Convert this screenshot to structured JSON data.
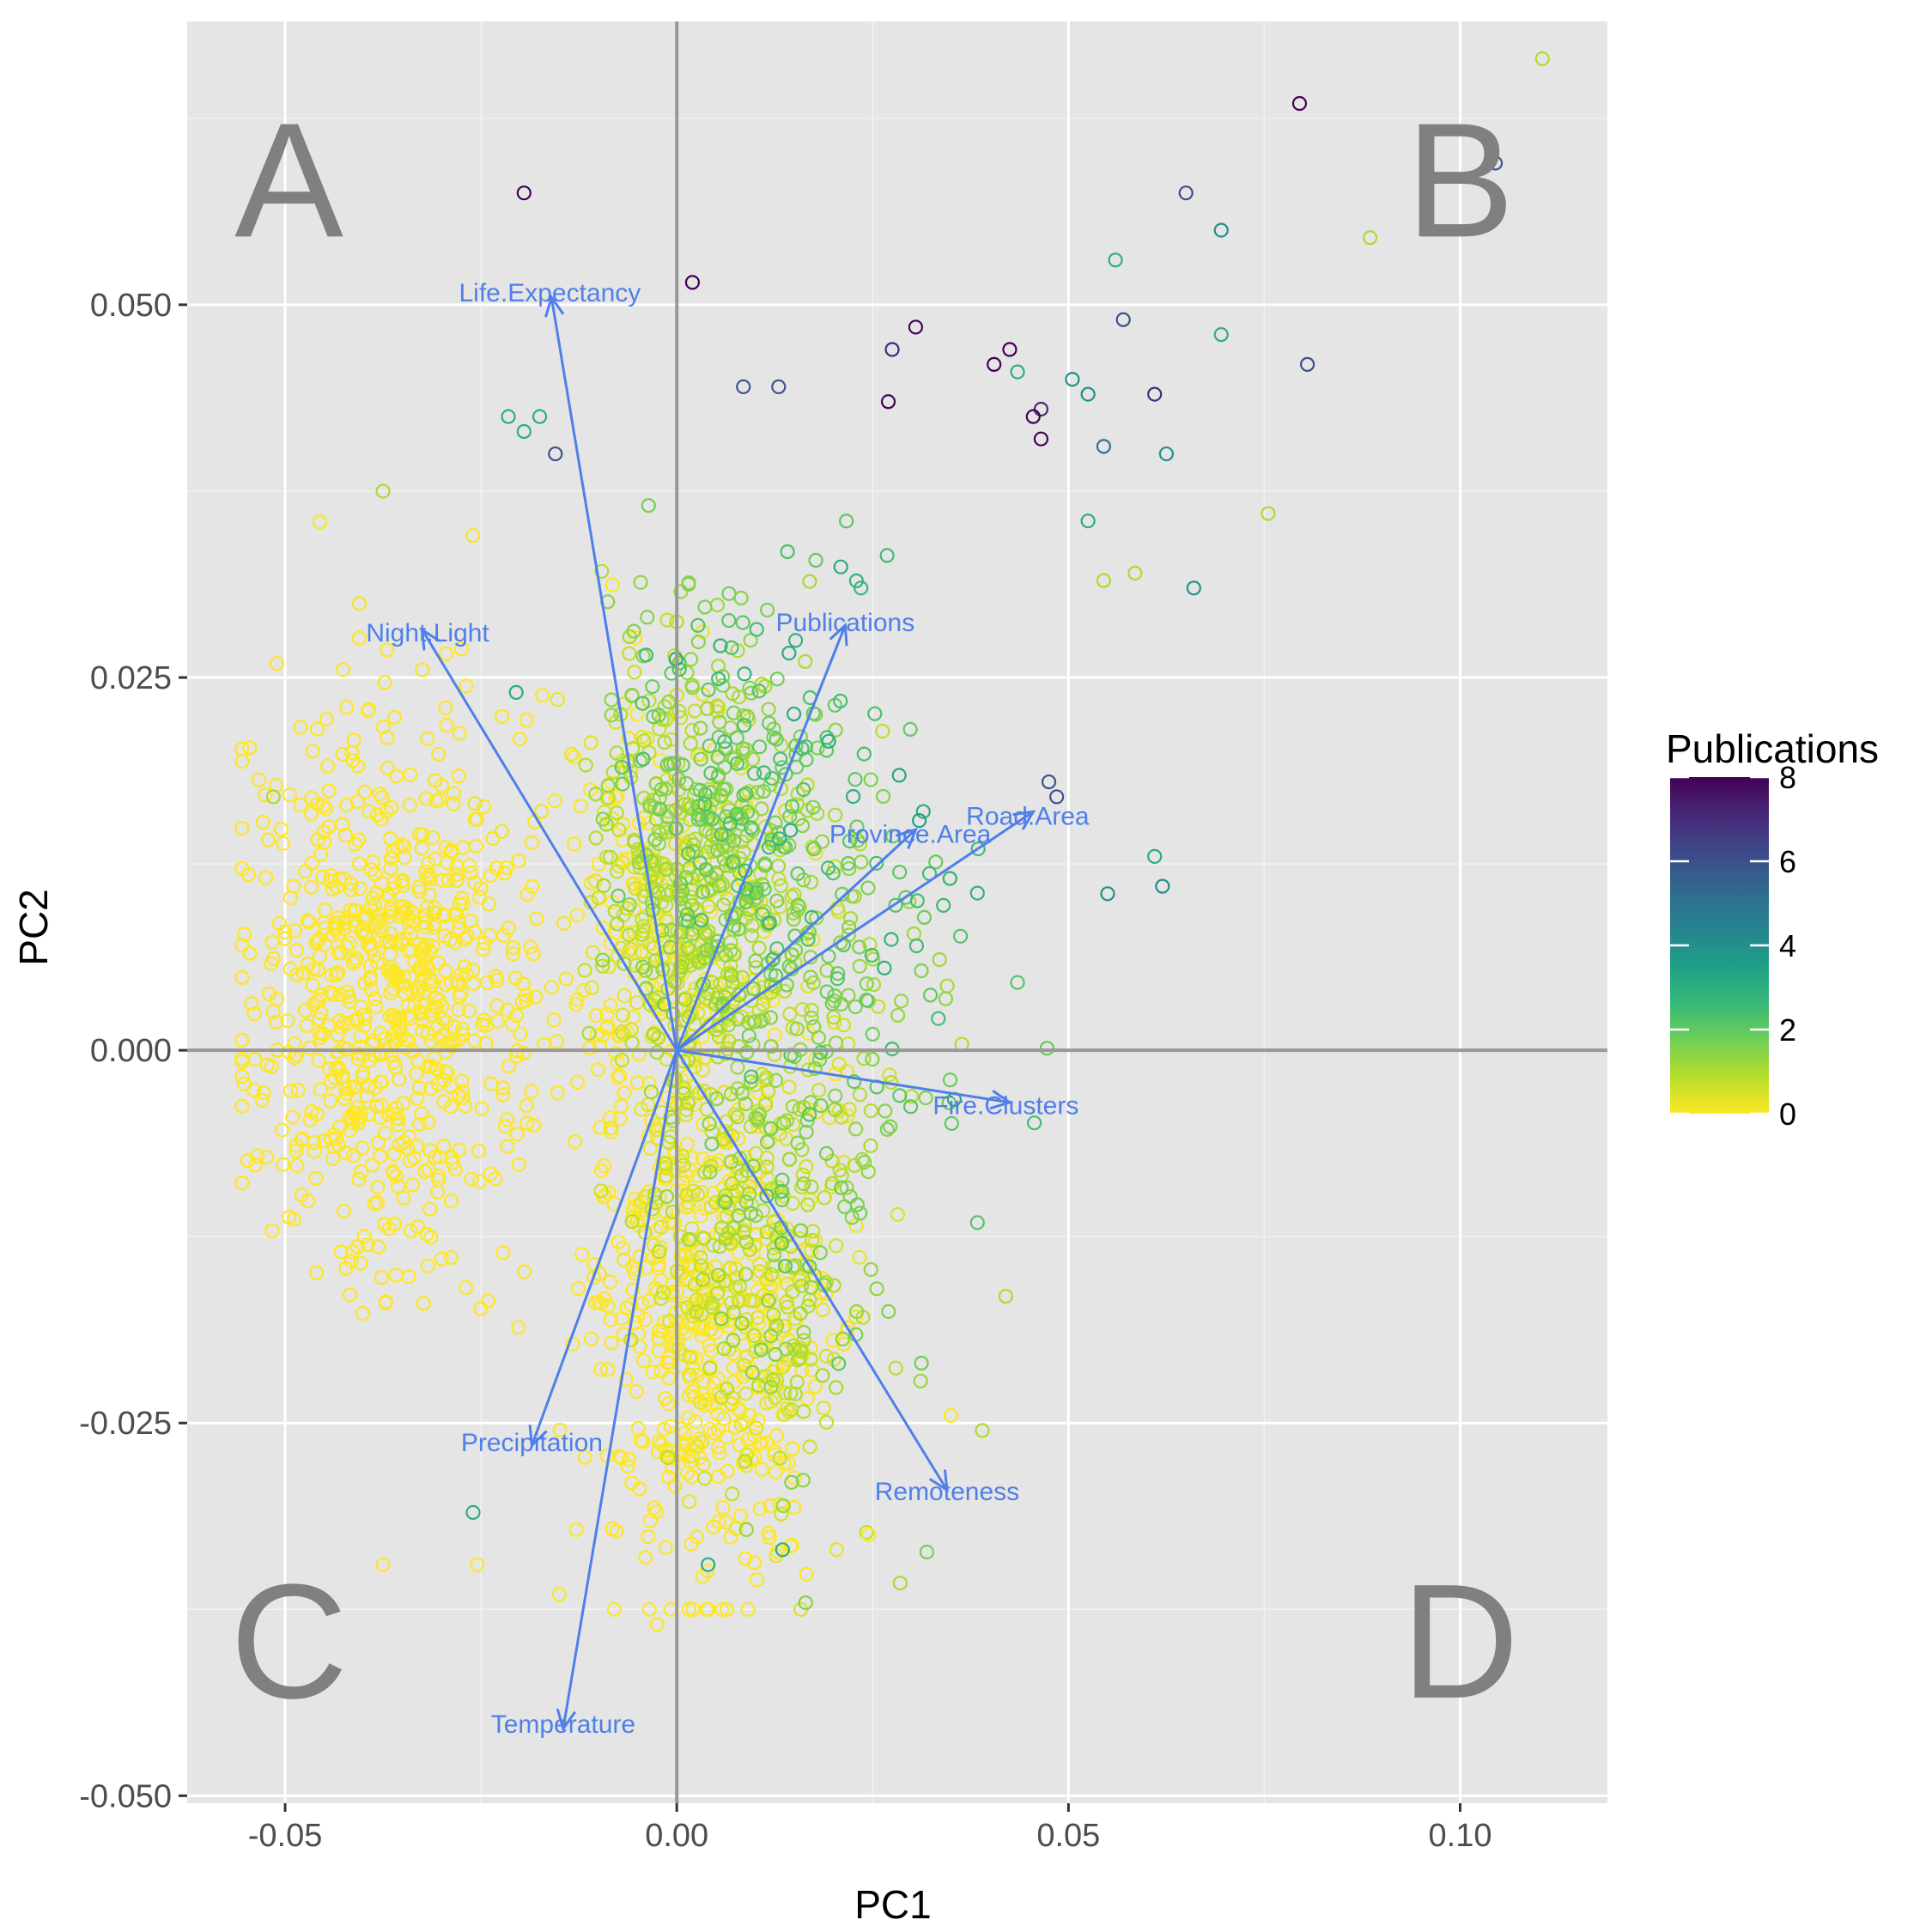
{
  "colors": {
    "panel": "#e5e5e5",
    "grid_major": "#ffffff",
    "grid_minor": "#f2f2f2",
    "ref_lines": "#999999",
    "arrows": "#4f7fe8",
    "quadrant_text": "#808080",
    "viridis": [
      "#fde725",
      "#b5de2b",
      "#6ece58",
      "#35b779",
      "#1f9e89",
      "#26828e",
      "#31688e",
      "#3e4989",
      "#482878",
      "#440154"
    ]
  },
  "chart_data": {
    "type": "scatter",
    "subtype": "pca-biplot",
    "xlabel": "PC1",
    "ylabel": "PC2",
    "xlim": [
      -0.0625,
      0.1188
    ],
    "ylim": [
      -0.0505,
      0.069
    ],
    "x_ticks": [
      -0.05,
      0.0,
      0.05,
      0.1
    ],
    "x_tick_labels": [
      "-0.05",
      "0.00",
      "0.05",
      "0.10"
    ],
    "y_ticks": [
      -0.05,
      -0.025,
      0.0,
      0.025,
      0.05
    ],
    "y_tick_labels": [
      "-0.050",
      "-0.025",
      "0.000",
      "0.025",
      "0.050"
    ],
    "reference_lines": {
      "x": 0,
      "y": 0
    },
    "quadrant_labels": [
      {
        "label": "A",
        "x": -0.0495,
        "y": 0.0585
      },
      {
        "label": "B",
        "x": 0.1,
        "y": 0.0585
      },
      {
        "label": "C",
        "x": -0.0495,
        "y": -0.0395
      },
      {
        "label": "D",
        "x": 0.1,
        "y": -0.0395
      }
    ],
    "loadings": [
      {
        "name": "Life.Expectancy",
        "x": -0.016,
        "y": 0.0505,
        "label_x": -0.0162,
        "label_y": 0.0508
      },
      {
        "name": "Night.Light",
        "x": -0.0325,
        "y": 0.0282,
        "label_x": -0.0318,
        "label_y": 0.028
      },
      {
        "name": "Publications",
        "x": 0.0215,
        "y": 0.0285,
        "label_x": 0.0215,
        "label_y": 0.0287
      },
      {
        "name": "Province.Area",
        "x": 0.0305,
        "y": 0.0148,
        "label_x": 0.0298,
        "label_y": 0.0145
      },
      {
        "name": "Road.Area",
        "x": 0.0455,
        "y": 0.016,
        "label_x": 0.0448,
        "label_y": 0.0157
      },
      {
        "name": "Fire.Clusters",
        "x": 0.0425,
        "y": -0.0035,
        "label_x": 0.042,
        "label_y": -0.0037
      },
      {
        "name": "Remoteness",
        "x": 0.0345,
        "y": -0.0295,
        "label_x": 0.0345,
        "label_y": -0.0296
      },
      {
        "name": "Precipitation",
        "x": -0.0185,
        "y": -0.0265,
        "label_x": -0.0185,
        "label_y": -0.0263
      },
      {
        "name": "Temperature",
        "x": -0.0145,
        "y": -0.0455,
        "label_x": -0.0145,
        "label_y": -0.0452
      }
    ],
    "notable_points": [
      {
        "x": 0.1105,
        "y": 0.0665,
        "publications": 1
      },
      {
        "x": 0.0795,
        "y": 0.0635,
        "publications": 8
      },
      {
        "x": 0.1045,
        "y": 0.0595,
        "publications": 6
      },
      {
        "x": 0.0885,
        "y": 0.0545,
        "publications": 1
      },
      {
        "x": 0.065,
        "y": 0.0575,
        "publications": 6
      },
      {
        "x": 0.0695,
        "y": 0.055,
        "publications": 4
      },
      {
        "x": 0.056,
        "y": 0.053,
        "publications": 3
      },
      {
        "x": 0.057,
        "y": 0.049,
        "publications": 6
      },
      {
        "x": 0.0805,
        "y": 0.046,
        "publications": 6
      },
      {
        "x": 0.0695,
        "y": 0.048,
        "publications": 3
      },
      {
        "x": -0.0195,
        "y": 0.0575,
        "publications": 8
      },
      {
        "x": 0.002,
        "y": 0.0515,
        "publications": 8
      },
      {
        "x": 0.0305,
        "y": 0.0485,
        "publications": 8
      },
      {
        "x": 0.0275,
        "y": 0.047,
        "publications": 7
      },
      {
        "x": 0.0425,
        "y": 0.047,
        "publications": 8
      },
      {
        "x": 0.0405,
        "y": 0.046,
        "publications": 8
      },
      {
        "x": 0.0435,
        "y": 0.0455,
        "publications": 3
      },
      {
        "x": 0.0505,
        "y": 0.045,
        "publications": 4
      },
      {
        "x": 0.0525,
        "y": 0.044,
        "publications": 4
      },
      {
        "x": 0.061,
        "y": 0.044,
        "publications": 7
      },
      {
        "x": 0.0465,
        "y": 0.043,
        "publications": 7
      },
      {
        "x": 0.0455,
        "y": 0.0425,
        "publications": 8
      },
      {
        "x": 0.0465,
        "y": 0.041,
        "publications": 8
      },
      {
        "x": 0.0545,
        "y": 0.0405,
        "publications": 5
      },
      {
        "x": 0.0625,
        "y": 0.04,
        "publications": 4
      },
      {
        "x": 0.0755,
        "y": 0.036,
        "publications": 1
      },
      {
        "x": 0.0085,
        "y": 0.0445,
        "publications": 6
      },
      {
        "x": 0.013,
        "y": 0.0445,
        "publications": 6
      },
      {
        "x": 0.027,
        "y": 0.0435,
        "publications": 8
      },
      {
        "x": 0.0525,
        "y": 0.0355,
        "publications": 3
      },
      {
        "x": 0.0545,
        "y": 0.0315,
        "publications": 1
      },
      {
        "x": 0.0585,
        "y": 0.032,
        "publications": 1
      },
      {
        "x": 0.066,
        "y": 0.031,
        "publications": 4
      },
      {
        "x": 0.061,
        "y": 0.013,
        "publications": 3
      },
      {
        "x": 0.062,
        "y": 0.011,
        "publications": 4
      },
      {
        "x": 0.055,
        "y": 0.0105,
        "publications": 4
      },
      {
        "x": 0.0475,
        "y": 0.018,
        "publications": 6
      },
      {
        "x": 0.0485,
        "y": 0.017,
        "publications": 6
      },
      {
        "x": 0.042,
        "y": -0.0165,
        "publications": 1
      },
      {
        "x": -0.0175,
        "y": 0.0425,
        "publications": 3
      },
      {
        "x": -0.0215,
        "y": 0.0425,
        "publications": 3
      },
      {
        "x": -0.0195,
        "y": 0.0415,
        "publications": 3
      },
      {
        "x": -0.0155,
        "y": 0.04,
        "publications": 6
      },
      {
        "x": -0.0375,
        "y": 0.0375,
        "publications": 1
      },
      {
        "x": -0.0205,
        "y": 0.024,
        "publications": 3
      },
      {
        "x": -0.0515,
        "y": 0.017,
        "publications": 1
      },
      {
        "x": -0.0545,
        "y": 0.0065,
        "publications": 0
      },
      {
        "x": -0.0375,
        "y": -0.0345,
        "publications": 0
      },
      {
        "x": -0.0255,
        "y": -0.0345,
        "publications": 0
      },
      {
        "x": -0.026,
        "y": -0.031,
        "publications": 3
      },
      {
        "x": -0.015,
        "y": -0.0365,
        "publications": 0
      },
      {
        "x": -0.008,
        "y": -0.0375,
        "publications": 0
      },
      {
        "x": -0.0025,
        "y": -0.0385,
        "publications": 0
      },
      {
        "x": 0.004,
        "y": -0.0345,
        "publications": 3
      },
      {
        "x": 0.0135,
        "y": -0.0335,
        "publications": 3
      },
      {
        "x": 0.0245,
        "y": -0.0325,
        "publications": 0
      },
      {
        "x": 0.039,
        "y": -0.0255,
        "publications": 1
      },
      {
        "x": 0.035,
        "y": -0.0245,
        "publications": 0
      }
    ],
    "cloud_points_count": 2600,
    "legend": {
      "title": "Publications",
      "placement": "right",
      "range": [
        0,
        8
      ],
      "tick_values": [
        0,
        2,
        4,
        6,
        8
      ],
      "tick_labels": [
        "0",
        "2",
        "4",
        "6",
        "8"
      ]
    }
  }
}
